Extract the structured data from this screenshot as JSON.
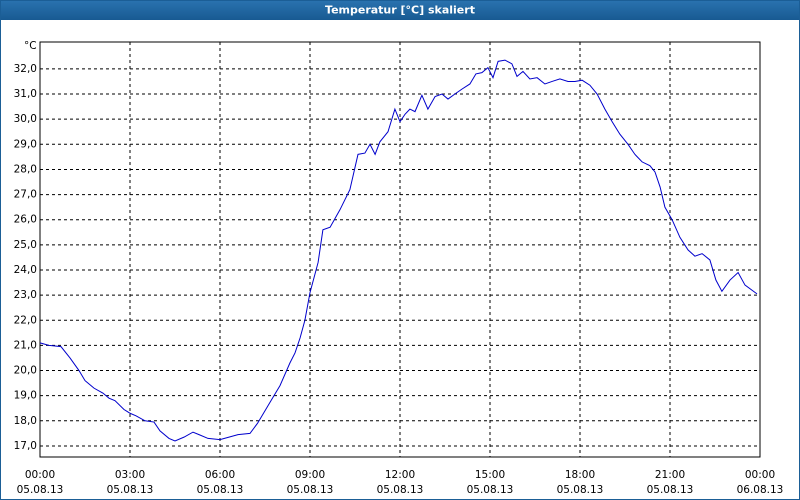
{
  "chart_data": {
    "type": "line",
    "title": "Temperatur [°C] skaliert",
    "ylabel": "°C",
    "x": [
      0,
      0.3,
      0.7,
      1.0,
      1.3,
      1.5,
      1.8,
      2.1,
      2.3,
      2.5,
      2.8,
      3.0,
      3.2,
      3.5,
      3.8,
      4.0,
      4.3,
      4.5,
      4.8,
      5.1,
      5.3,
      5.6,
      6.0,
      6.3,
      6.6,
      7.0,
      7.25,
      7.5,
      7.75,
      8.0,
      8.33,
      8.5,
      8.67,
      8.83,
      9.0,
      9.27,
      9.43,
      9.67,
      10.0,
      10.33,
      10.6,
      10.83,
      11.0,
      11.17,
      11.33,
      11.6,
      11.83,
      12.0,
      12.17,
      12.33,
      12.5,
      12.73,
      12.93,
      13.17,
      13.4,
      13.6,
      13.83,
      14.07,
      14.33,
      14.53,
      14.73,
      14.93,
      15.1,
      15.27,
      15.5,
      15.73,
      15.9,
      16.1,
      16.33,
      16.57,
      16.83,
      17.07,
      17.33,
      17.6,
      17.83,
      18.07,
      18.33,
      18.57,
      18.83,
      19.07,
      19.33,
      19.6,
      19.83,
      20.07,
      20.33,
      20.5,
      20.67,
      20.83,
      21.07,
      21.33,
      21.6,
      21.83,
      22.07,
      22.33,
      22.53,
      22.73,
      23.0,
      23.27,
      23.5,
      23.73,
      23.9
    ],
    "series": [
      {
        "name": "Temperatur",
        "color": "#0000cc",
        "values": [
          21.1,
          21.0,
          20.95,
          20.5,
          20.0,
          19.6,
          19.3,
          19.1,
          18.9,
          18.8,
          18.45,
          18.3,
          18.2,
          18.0,
          17.95,
          17.6,
          17.3,
          17.2,
          17.35,
          17.55,
          17.45,
          17.3,
          17.25,
          17.35,
          17.45,
          17.5,
          17.9,
          18.4,
          18.9,
          19.4,
          20.3,
          20.7,
          21.3,
          22.0,
          23.1,
          24.3,
          25.6,
          25.7,
          26.4,
          27.2,
          28.6,
          28.65,
          29.0,
          28.6,
          29.1,
          29.5,
          30.4,
          29.9,
          30.2,
          30.4,
          30.3,
          30.95,
          30.4,
          30.9,
          31.0,
          30.8,
          31.0,
          31.2,
          31.4,
          31.8,
          31.85,
          32.05,
          31.65,
          32.3,
          32.35,
          32.2,
          31.7,
          31.9,
          31.6,
          31.65,
          31.4,
          31.5,
          31.6,
          31.5,
          31.5,
          31.55,
          31.35,
          31.0,
          30.4,
          29.9,
          29.4,
          29.0,
          28.6,
          28.3,
          28.15,
          27.9,
          27.3,
          26.5,
          26.0,
          25.3,
          24.8,
          24.55,
          24.65,
          24.4,
          23.6,
          23.15,
          23.6,
          23.9,
          23.4,
          23.2,
          23.05
        ]
      }
    ],
    "xlim": [
      0,
      24
    ],
    "xticks": [
      {
        "value": 0,
        "label": [
          "00:00",
          "05.08.13"
        ]
      },
      {
        "value": 3,
        "label": [
          "03:00",
          "05.08.13"
        ]
      },
      {
        "value": 6,
        "label": [
          "06:00",
          "05.08.13"
        ]
      },
      {
        "value": 9,
        "label": [
          "09:00",
          "05.08.13"
        ]
      },
      {
        "value": 12,
        "label": [
          "12:00",
          "05.08.13"
        ]
      },
      {
        "value": 15,
        "label": [
          "15:00",
          "05.08.13"
        ]
      },
      {
        "value": 18,
        "label": [
          "18:00",
          "05.08.13"
        ]
      },
      {
        "value": 21,
        "label": [
          "21:00",
          "05.08.13"
        ]
      },
      {
        "value": 24,
        "label": [
          "00:00",
          "06.08.13"
        ]
      }
    ],
    "ylim": [
      16.56,
      33.07
    ],
    "yticks": [
      {
        "value": 17,
        "label": "17,0"
      },
      {
        "value": 18,
        "label": "18,0"
      },
      {
        "value": 19,
        "label": "19,0"
      },
      {
        "value": 20,
        "label": "20,0"
      },
      {
        "value": 21,
        "label": "21,0"
      },
      {
        "value": 22,
        "label": "22,0"
      },
      {
        "value": 23,
        "label": "23,0"
      },
      {
        "value": 24,
        "label": "24,0"
      },
      {
        "value": 25,
        "label": "25,0"
      },
      {
        "value": 26,
        "label": "26,0"
      },
      {
        "value": 27,
        "label": "27,0"
      },
      {
        "value": 28,
        "label": "28,0"
      },
      {
        "value": 29,
        "label": "29,0"
      },
      {
        "value": 30,
        "label": "30,0"
      },
      {
        "value": 31,
        "label": "31,0"
      },
      {
        "value": 32,
        "label": "32,0"
      }
    ],
    "grid": true
  }
}
